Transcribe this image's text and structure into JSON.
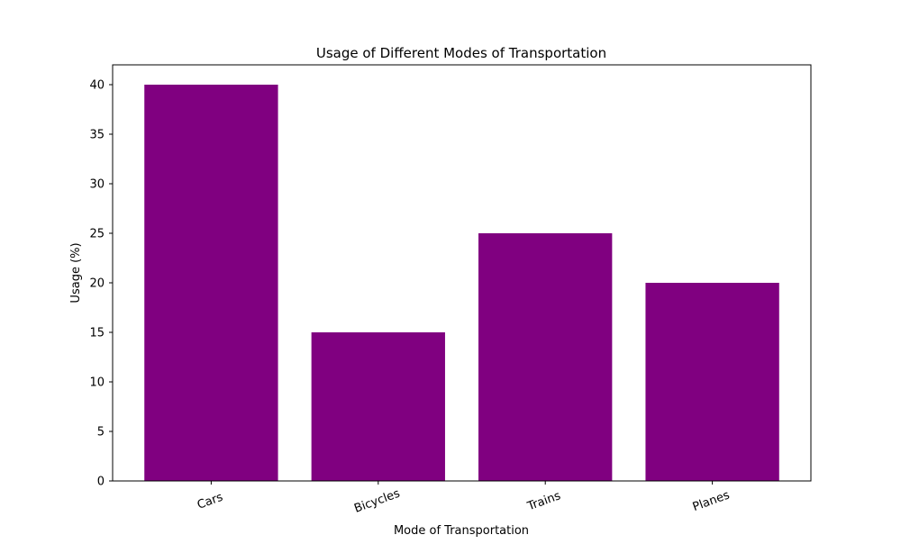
{
  "chart_data": {
    "type": "bar",
    "title": "Usage of Different Modes of Transportation",
    "xlabel": "Mode of Transportation",
    "ylabel": "Usage (%)",
    "categories": [
      "Cars",
      "Bicycles",
      "Trains",
      "Planes"
    ],
    "values": [
      40,
      15,
      25,
      20
    ],
    "ylim": [
      0,
      42
    ],
    "yticks": [
      0,
      5,
      10,
      15,
      20,
      25,
      30,
      35,
      40
    ],
    "xtick_rotation": "angled",
    "grid": false,
    "legend": "none",
    "colors": {
      "bar": "#800080",
      "axes": "#000000",
      "background": "#ffffff"
    }
  }
}
